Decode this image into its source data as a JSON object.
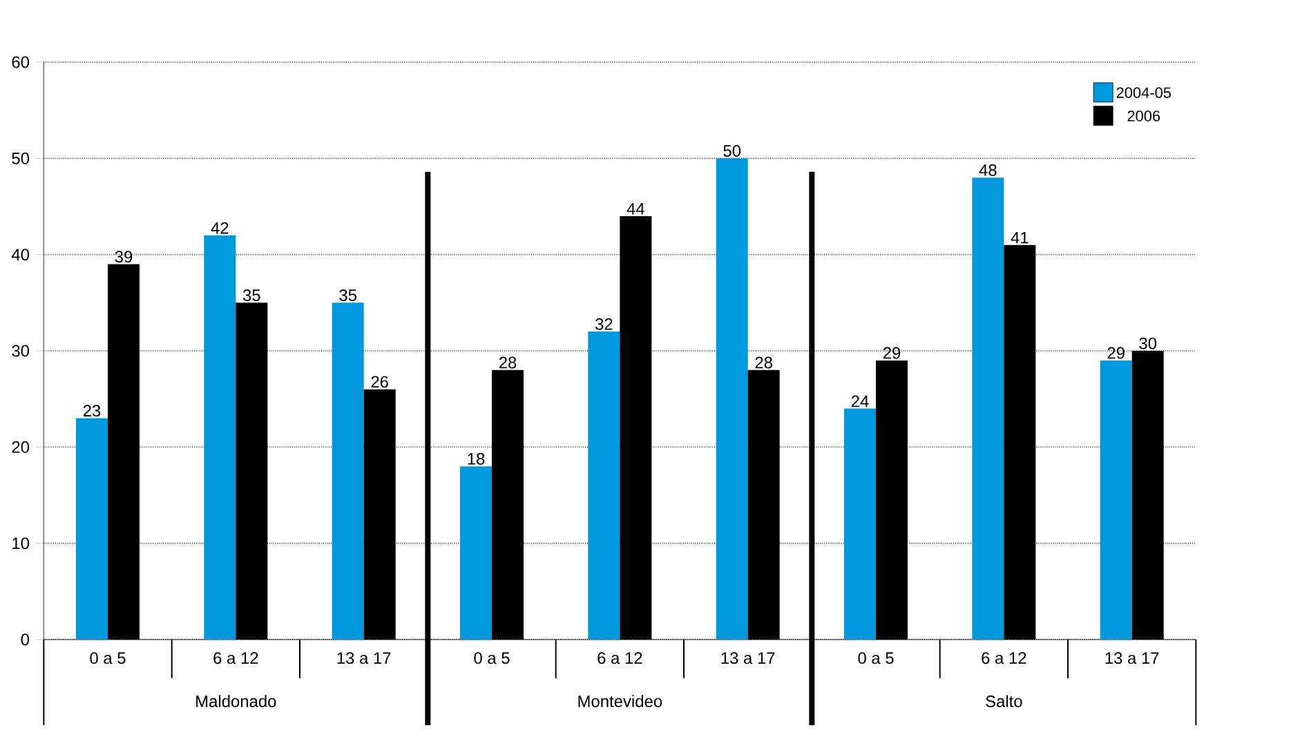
{
  "chart_data": {
    "type": "bar",
    "categories": [
      "0 a 5",
      "6 a 12",
      "13 a 17",
      "0 a 5",
      "6 a 12",
      "13 a 17",
      "0 a 5",
      "6 a 12",
      "13 a 17"
    ],
    "series": [
      {
        "name": "2004-05",
        "color": "#0099dd",
        "values": [
          23,
          42,
          35,
          18,
          32,
          50,
          24,
          48,
          29
        ]
      },
      {
        "name": "2006",
        "color": "#000000",
        "values": [
          39,
          35,
          26,
          28,
          44,
          28,
          29,
          41,
          30
        ]
      }
    ],
    "ylim": [
      0,
      60
    ],
    "yticks": [
      0,
      10,
      20,
      30,
      40,
      50,
      60
    ],
    "grid": "y",
    "legend": "top right",
    "data_labels": true,
    "annotations": [
      "Maldonado",
      "Montevideo",
      "Salto"
    ]
  }
}
